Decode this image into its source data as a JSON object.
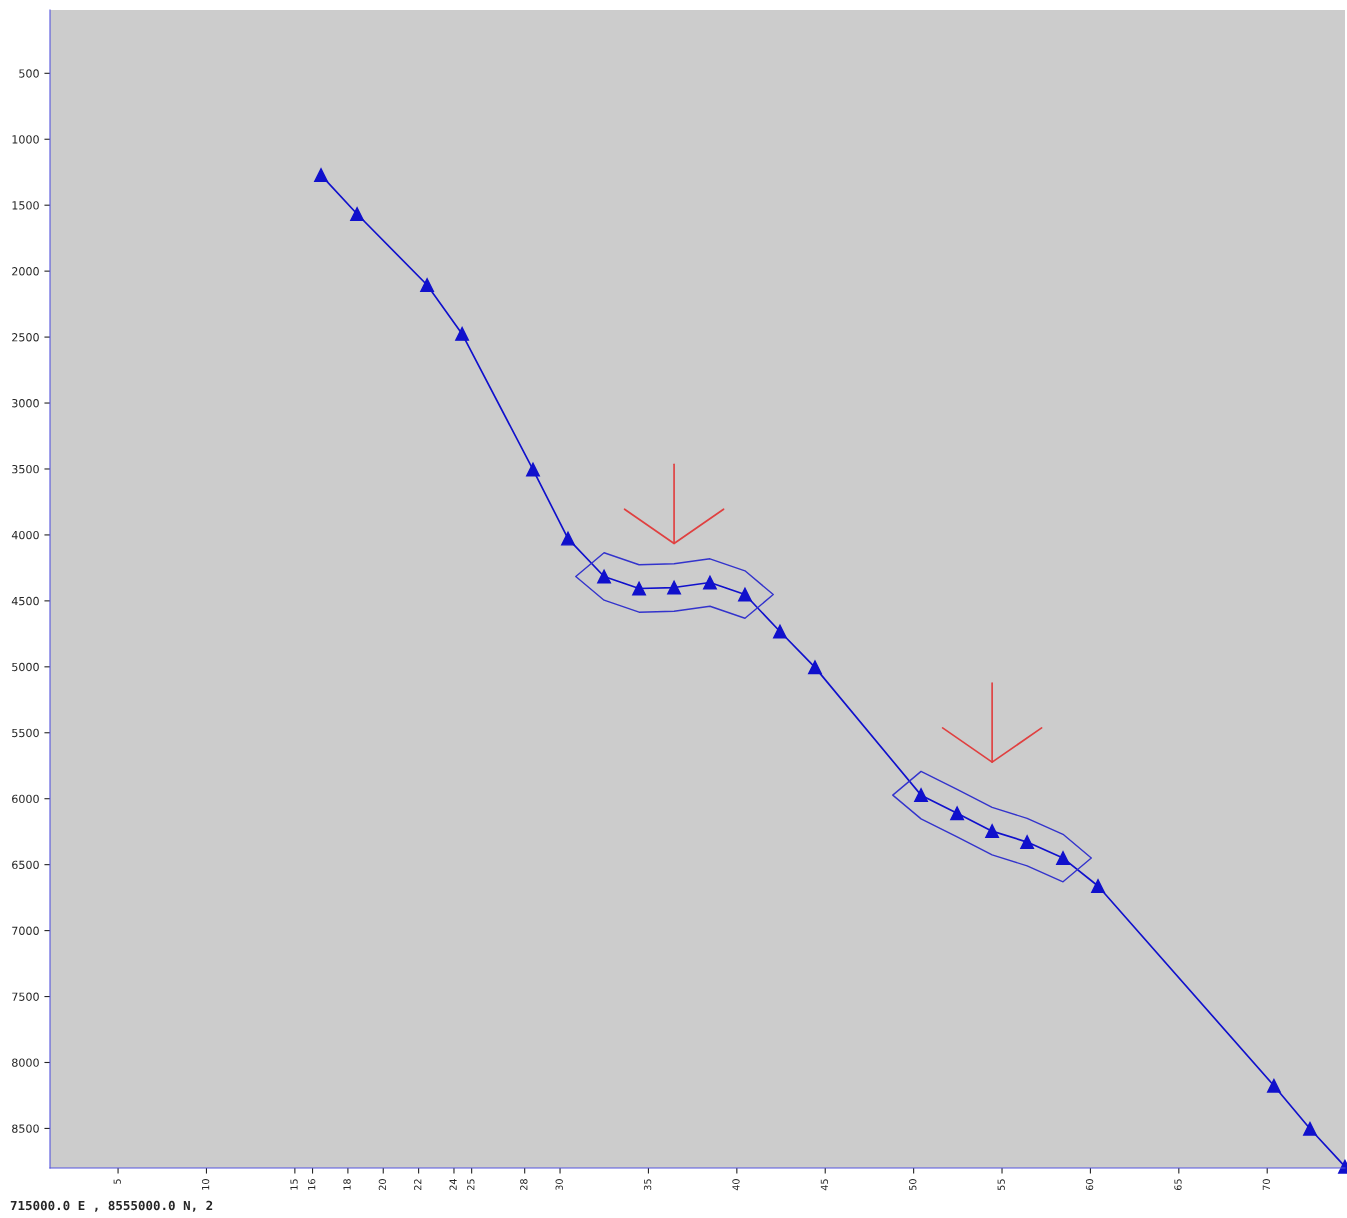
{
  "chart_data": {
    "type": "line",
    "marker": "triangle",
    "line_style": "solid",
    "legend": false,
    "x": [
      16.48,
      18.52,
      22.48,
      24.46,
      28.47,
      30.45,
      32.49,
      34.47,
      36.45,
      38.48,
      40.46,
      42.44,
      44.42,
      50.42,
      52.46,
      54.44,
      56.42,
      58.45,
      60.43,
      70.38,
      72.42,
      74.4
    ],
    "series": [
      {
        "color": "#1010cc",
        "values": [
          1272,
          1567,
          2105,
          2476,
          3505,
          4028,
          4315,
          4406,
          4399,
          4361,
          4452,
          4732,
          5004,
          5973,
          6110,
          6246,
          6329,
          6450,
          6662,
          8176,
          8502,
          8790
        ]
      }
    ],
    "xlim": [
      1.15,
      74.4
    ],
    "ylim": [
      8800,
      20
    ],
    "xticks": [
      5,
      10,
      15,
      16,
      18,
      20,
      22,
      24,
      25,
      28,
      30,
      35,
      40,
      45,
      50,
      55,
      60,
      65,
      70
    ],
    "yticks": [
      500,
      1000,
      1500,
      2000,
      2500,
      3000,
      3500,
      4000,
      4500,
      5000,
      5500,
      6000,
      6500,
      7000,
      7500,
      8000,
      8500
    ],
    "annotations": [
      "715000.0 E , 8555000.0 N, 2"
    ]
  }
}
